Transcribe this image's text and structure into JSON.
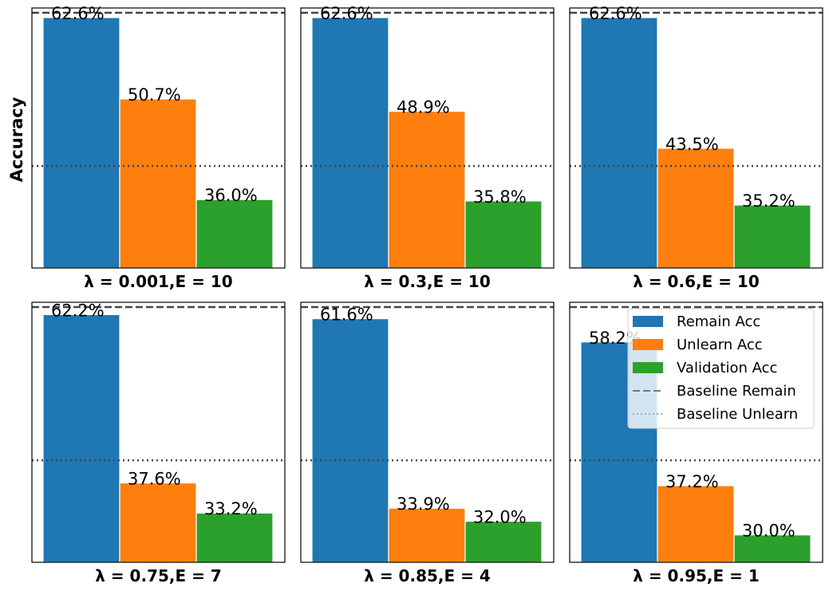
{
  "chart_data": {
    "type": "bar",
    "ylabel": "Accuracy",
    "ylim": [
      26,
      64
    ],
    "series_names": [
      "Remain Acc",
      "Unlearn Acc",
      "Validation Acc"
    ],
    "colors": {
      "remain": "#1f77b4",
      "unlearn": "#ff7f0e",
      "validation": "#2ca02c",
      "baseline": "#444444"
    },
    "baselines": {
      "remain": 63.3,
      "unlearn": 40.9
    },
    "panels": [
      {
        "title": "λ = 0.001,E = 10",
        "values": [
          62.6,
          50.7,
          36.0
        ],
        "labels": [
          "62.6%",
          "50.7%",
          "36.0%"
        ]
      },
      {
        "title": "λ = 0.3,E = 10",
        "values": [
          62.6,
          48.9,
          35.8
        ],
        "labels": [
          "62.6%",
          "48.9%",
          "35.8%"
        ]
      },
      {
        "title": "λ = 0.6,E = 10",
        "values": [
          62.6,
          43.5,
          35.2
        ],
        "labels": [
          "62.6%",
          "43.5%",
          "35.2%"
        ]
      },
      {
        "title": "λ = 0.75,E = 7",
        "values": [
          62.2,
          37.6,
          33.2
        ],
        "labels": [
          "62.2%",
          "37.6%",
          "33.2%"
        ]
      },
      {
        "title": "λ = 0.85,E = 4",
        "values": [
          61.6,
          33.9,
          32.0
        ],
        "labels": [
          "61.6%",
          "33.9%",
          "32.0%"
        ]
      },
      {
        "title": "λ = 0.95,E = 1",
        "values": [
          58.2,
          37.2,
          30.0
        ],
        "labels": [
          "58.2%",
          "37.2%",
          "30.0%"
        ]
      }
    ],
    "legend": {
      "placement": "top-right of last panel",
      "entries": [
        "Remain Acc",
        "Unlearn Acc",
        "Validation Acc",
        "Baseline Remain",
        "Baseline Unlearn"
      ]
    }
  }
}
